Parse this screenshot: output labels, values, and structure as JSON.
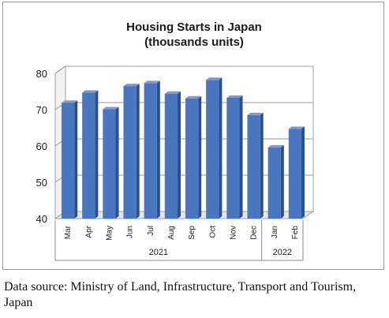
{
  "chart_data": {
    "type": "bar",
    "title": "Housing Starts in Japan",
    "subtitle": "(thousands units)",
    "categories": [
      "Mar",
      "Apr",
      "May",
      "Jun",
      "Jul",
      "Aug",
      "Sep",
      "Oct",
      "Nov",
      "Dec",
      "Jan",
      "Feb"
    ],
    "values": [
      71.9,
      74.7,
      70.1,
      76.5,
      77.3,
      74.4,
      73.1,
      78.2,
      73.3,
      68.5,
      59.6,
      64.7
    ],
    "year_groups": [
      {
        "label": "2021",
        "count": 10
      },
      {
        "label": "2022",
        "count": 2
      }
    ],
    "ylim": [
      40,
      80
    ],
    "yticks": [
      40,
      50,
      60,
      70,
      80
    ],
    "xlabel": "",
    "ylabel": "",
    "grid": true,
    "legend": "none",
    "bar_color": "#4a76c0"
  },
  "source_note": "Data source: Ministry of Land, Infrastructure, Transport and Tourism, Japan"
}
